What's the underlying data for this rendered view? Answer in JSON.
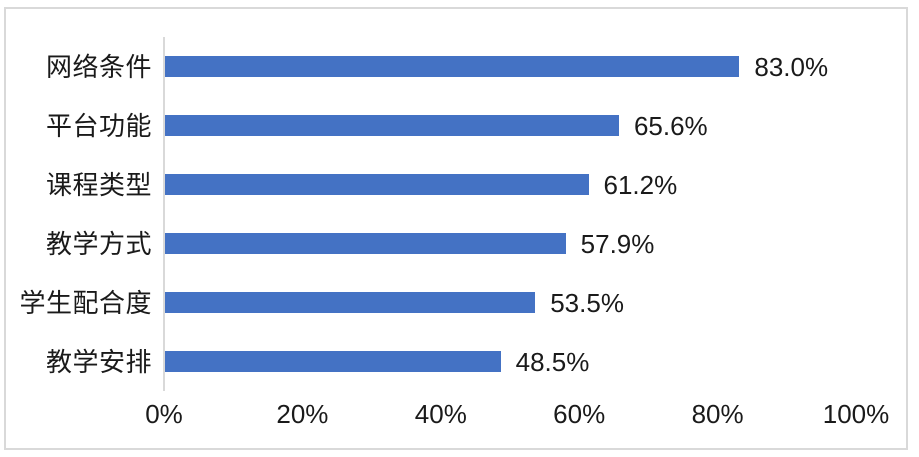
{
  "chart_data": {
    "type": "bar",
    "orientation": "horizontal",
    "title": "",
    "categories": [
      "网络条件",
      "平台功能",
      "课程类型",
      "教学方式",
      "学生配合度",
      "教学安排"
    ],
    "values": [
      83.0,
      65.6,
      61.2,
      57.9,
      53.5,
      48.5
    ],
    "value_labels": [
      "83.0%",
      "65.6%",
      "61.2%",
      "57.9%",
      "53.5%",
      "48.5%"
    ],
    "x_tick_labels": [
      "0%",
      "20%",
      "40%",
      "60%",
      "80%",
      "100%"
    ],
    "xlim": [
      0,
      100
    ],
    "grid": false,
    "legend": "none",
    "bar_color": "#4472C4",
    "axis_line_color": "#D9D9D9",
    "frame_border_color": "#D9D9D9",
    "text_color": "#1A1A1A"
  }
}
